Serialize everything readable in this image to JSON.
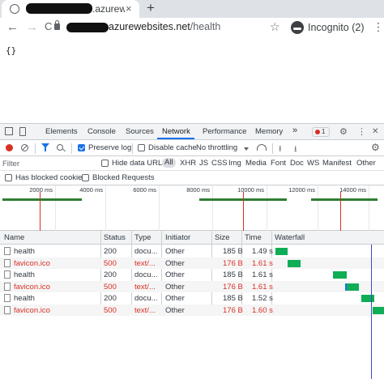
{
  "browser": {
    "tab_title": ".azurew",
    "tab_close": "×",
    "new_tab": "+",
    "url_host": "azurewebsites.net",
    "url_path": "/health",
    "incognito_label": "Incognito (2)",
    "nav_back": "←",
    "nav_forward": "→",
    "reload": "C",
    "star": "☆",
    "menu": "⋮"
  },
  "page": {
    "body_text": "{}"
  },
  "devtools": {
    "tabs": [
      "Elements",
      "Console",
      "Sources",
      "Network",
      "Performance",
      "Memory"
    ],
    "active_tab": "Network",
    "more_tabs": "»",
    "error_count": "1",
    "close": "✕",
    "kebab": "⋮",
    "settings": "⚙",
    "network_toolbar": {
      "preserve_log": "Preserve log",
      "preserve_log_checked": true,
      "disable_cache": "Disable cache",
      "disable_cache_checked": false,
      "throttling": "No throttling"
    },
    "filter": {
      "placeholder": "Filter",
      "hide_data_urls": "Hide data URLs",
      "types": [
        "All",
        "XHR",
        "JS",
        "CSS",
        "Img",
        "Media",
        "Font",
        "Doc",
        "WS",
        "Manifest",
        "Other"
      ],
      "has_blocked_cookies": "Has blocked cookies",
      "blocked_requests": "Blocked Requests"
    },
    "overview": {
      "ticks": [
        "2000 ms",
        "4000 ms",
        "6000 ms",
        "8000 ms",
        "10000 ms",
        "12000 ms",
        "14000 ms"
      ]
    },
    "table": {
      "headers": [
        "Name",
        "Status",
        "Type",
        "Initiator",
        "Size",
        "Time",
        "Waterfall"
      ],
      "rows": [
        {
          "name": "health",
          "status": "200",
          "type": "docu...",
          "initiator": "Other",
          "size": "185 B",
          "time": "1.49 s",
          "error": false
        },
        {
          "name": "favicon.ico",
          "status": "500",
          "type": "text/...",
          "initiator": "Other",
          "size": "176 B",
          "time": "1.61 s",
          "error": true
        },
        {
          "name": "health",
          "status": "200",
          "type": "docu...",
          "initiator": "Other",
          "size": "185 B",
          "time": "1.61 s",
          "error": false
        },
        {
          "name": "favicon.ico",
          "status": "500",
          "type": "text/...",
          "initiator": "Other",
          "size": "176 B",
          "time": "1.61 s",
          "error": true
        },
        {
          "name": "health",
          "status": "200",
          "type": "docu...",
          "initiator": "Other",
          "size": "185 B",
          "time": "1.52 s",
          "error": false
        },
        {
          "name": "favicon.ico",
          "status": "500",
          "type": "text/...",
          "initiator": "Other",
          "size": "176 B",
          "time": "1.60 s",
          "error": true
        }
      ]
    }
  },
  "colors": {
    "error_red": "#d93025",
    "accent_blue": "#1a73e8",
    "waterfall_green": "#0fad55"
  }
}
